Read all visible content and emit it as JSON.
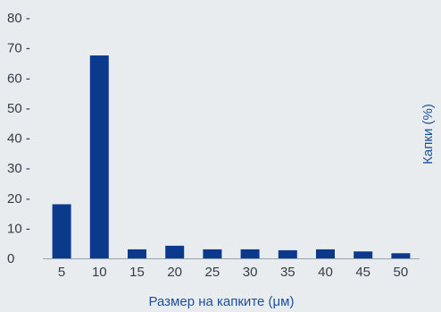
{
  "chart_data": {
    "type": "bar",
    "categories": [
      "5",
      "10",
      "15",
      "20",
      "25",
      "30",
      "35",
      "40",
      "45",
      "50"
    ],
    "values": [
      18,
      67.5,
      3,
      4.2,
      3,
      3,
      2.7,
      3,
      2.3,
      1.7
    ],
    "title": "",
    "xlabel": "Размер на капките (μм)",
    "ylabel": "Капки (%)",
    "ylim": [
      0,
      80
    ],
    "yticks": [
      "0",
      "10",
      "20",
      "30",
      "40",
      "50",
      "60",
      "70",
      "80"
    ],
    "grid": false,
    "bar_color": "#0b3a8c",
    "axis_title_color": "#1c4f9c",
    "tick_color": "#333d47"
  }
}
